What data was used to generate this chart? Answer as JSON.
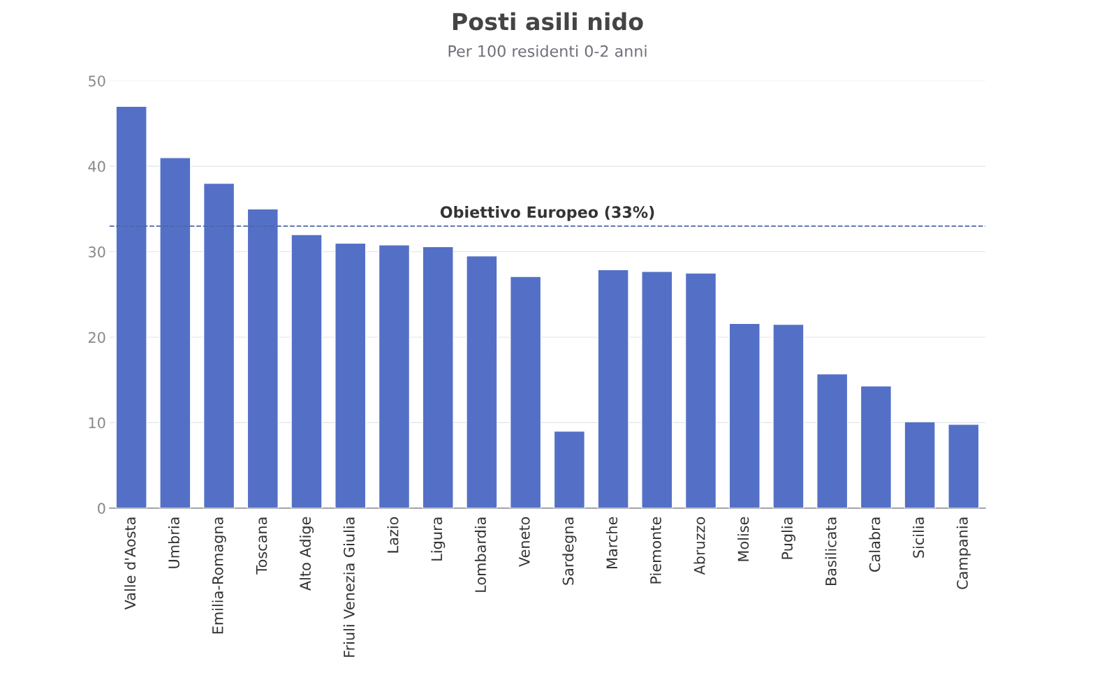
{
  "chart_data": {
    "type": "bar",
    "title": "Posti asili nido",
    "subtitle": "Per 100 residenti 0-2 anni",
    "categories": [
      "Valle d'Aosta",
      "Umbria",
      "Emilia-Romagna",
      "Toscana",
      "Alto Adige",
      "Friuli Venezia Giulia",
      "Lazio",
      "Ligura",
      "Lombardia",
      "Veneto",
      "Sardegna",
      "Marche",
      "Piemonte",
      "Abruzzo",
      "Molise",
      "Puglia",
      "Basilicata",
      "Calabra",
      "Sicilia",
      "Campania"
    ],
    "values": [
      47.0,
      41.0,
      38.0,
      35.0,
      32.0,
      31.0,
      30.8,
      30.6,
      29.5,
      27.1,
      9.0,
      27.9,
      27.7,
      27.5,
      21.6,
      21.5,
      15.7,
      14.3,
      10.1,
      9.8
    ],
    "color": "#5470c6",
    "ylim": [
      0,
      50
    ],
    "yticks": [
      0,
      10,
      20,
      30,
      40,
      50
    ],
    "grid": "y",
    "ref_lines": [
      {
        "axis": "y",
        "value": 33,
        "label": "Obiettivo Europeo (33%)",
        "color": "#4a65a8",
        "line_style": "dashed"
      }
    ]
  }
}
